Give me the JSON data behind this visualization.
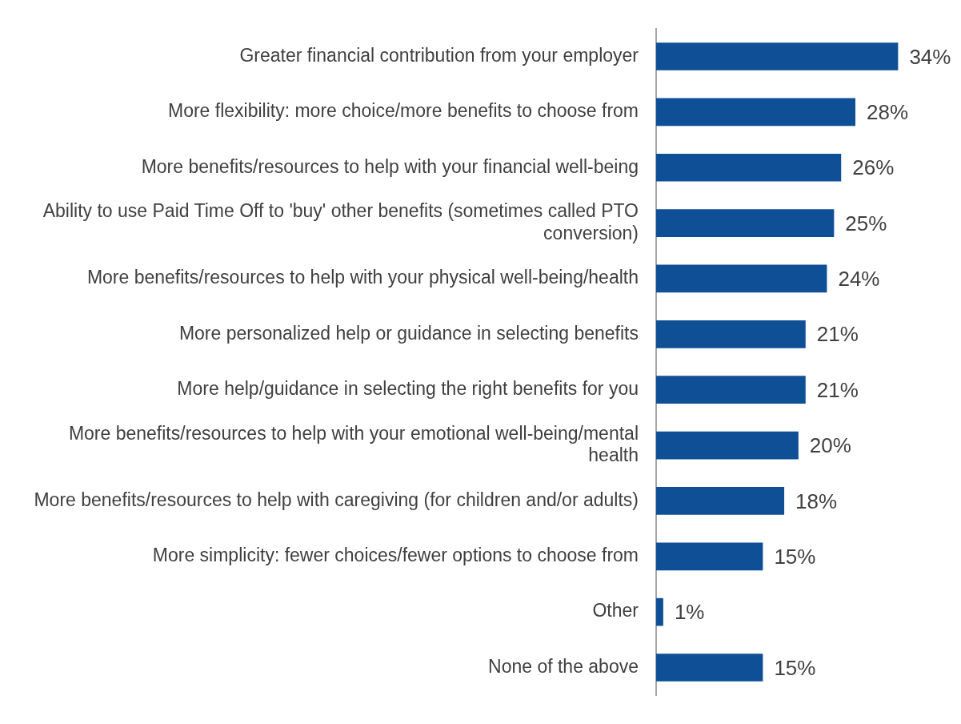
{
  "chart_data": {
    "type": "bar",
    "orientation": "horizontal",
    "categories": [
      "Greater financial contribution from your employer",
      "More flexibility: more choice/more benefits to choose from",
      "More benefits/resources to help with your financial well-being",
      "Ability to use Paid Time Off to 'buy' other benefits (sometimes called PTO conversion)",
      "More benefits/resources to help with your physical well-being/health",
      "More personalized help or guidance in selecting benefits",
      "More help/guidance in selecting the right benefits for you",
      "More benefits/resources to help with your emotional well-being/mental health",
      "More benefits/resources to help with caregiving (for children and/or adults)",
      "More simplicity: fewer choices/fewer options to choose from",
      "Other",
      "None of the above"
    ],
    "values": [
      34,
      28,
      26,
      25,
      24,
      21,
      21,
      20,
      18,
      15,
      1,
      15
    ],
    "value_labels": [
      "34%",
      "28%",
      "26%",
      "25%",
      "24%",
      "21%",
      "21%",
      "20%",
      "18%",
      "15%",
      "1%",
      "15%"
    ],
    "color": "#0f4f96",
    "grid": false,
    "legend": false
  }
}
